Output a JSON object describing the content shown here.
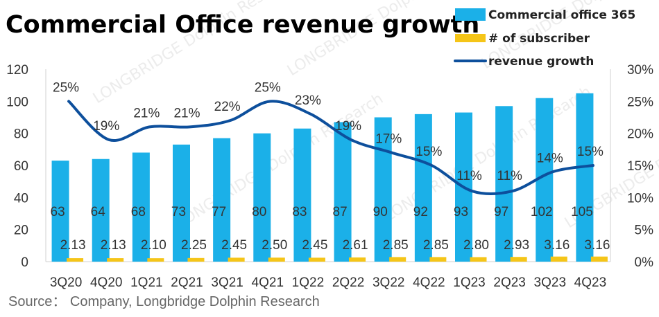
{
  "chart_data": {
    "type": "bar",
    "title": "Commercial Office revenue growth",
    "categories": [
      "3Q20",
      "4Q20",
      "1Q21",
      "2Q21",
      "3Q21",
      "4Q21",
      "1Q22",
      "2Q22",
      "3Q22",
      "4Q22",
      "1Q23",
      "2Q23",
      "3Q23",
      "4Q23"
    ],
    "series": [
      {
        "name": "Commercial office 365",
        "kind": "bar",
        "axis": "left",
        "color": "#1bb0e8",
        "values": [
          63,
          64,
          68,
          73,
          77,
          80,
          83,
          87,
          90,
          92,
          93,
          97,
          102,
          105
        ],
        "labels": [
          "63",
          "64",
          "68",
          "73",
          "77",
          "80",
          "83",
          "87",
          "90",
          "92",
          "93",
          "97",
          "102",
          "105"
        ]
      },
      {
        "name": "# of subscriber",
        "kind": "bar",
        "axis": "left",
        "color": "#f5c518",
        "values": [
          2.13,
          2.13,
          2.1,
          2.25,
          2.45,
          2.5,
          2.45,
          2.61,
          2.85,
          2.85,
          2.8,
          2.93,
          3.16,
          3.16
        ],
        "labels": [
          "2.13",
          "2.13",
          "2.10",
          "2.25",
          "2.45",
          "2.50",
          "2.45",
          "2.61",
          "2.85",
          "2.85",
          "2.80",
          "2.93",
          "3.16",
          "3.16"
        ]
      },
      {
        "name": "revenue growth",
        "kind": "line",
        "axis": "right",
        "color": "#0d4f9c",
        "values": [
          25,
          19,
          21,
          21,
          22,
          25,
          23,
          19,
          17,
          15,
          11,
          11,
          14,
          15
        ],
        "labels": [
          "25%",
          "19%",
          "21%",
          "21%",
          "22%",
          "25%",
          "23%",
          "19%",
          "17%",
          "15%",
          "11%",
          "11%",
          "14%",
          "15%"
        ]
      }
    ],
    "y_left": {
      "min": 0,
      "max": 120,
      "ticks": [
        "0",
        "20",
        "40",
        "60",
        "80",
        "100",
        "120"
      ]
    },
    "y_right": {
      "min": 0,
      "max": 30,
      "ticks": [
        "0%",
        "5%",
        "10%",
        "15%",
        "20%",
        "25%",
        "30%"
      ]
    },
    "legend_position": "top-right",
    "grid": false
  },
  "source": "Source：  Company, Longbridge Dolphin Research",
  "watermark": "LONGBRIDGE Dolphin Research"
}
